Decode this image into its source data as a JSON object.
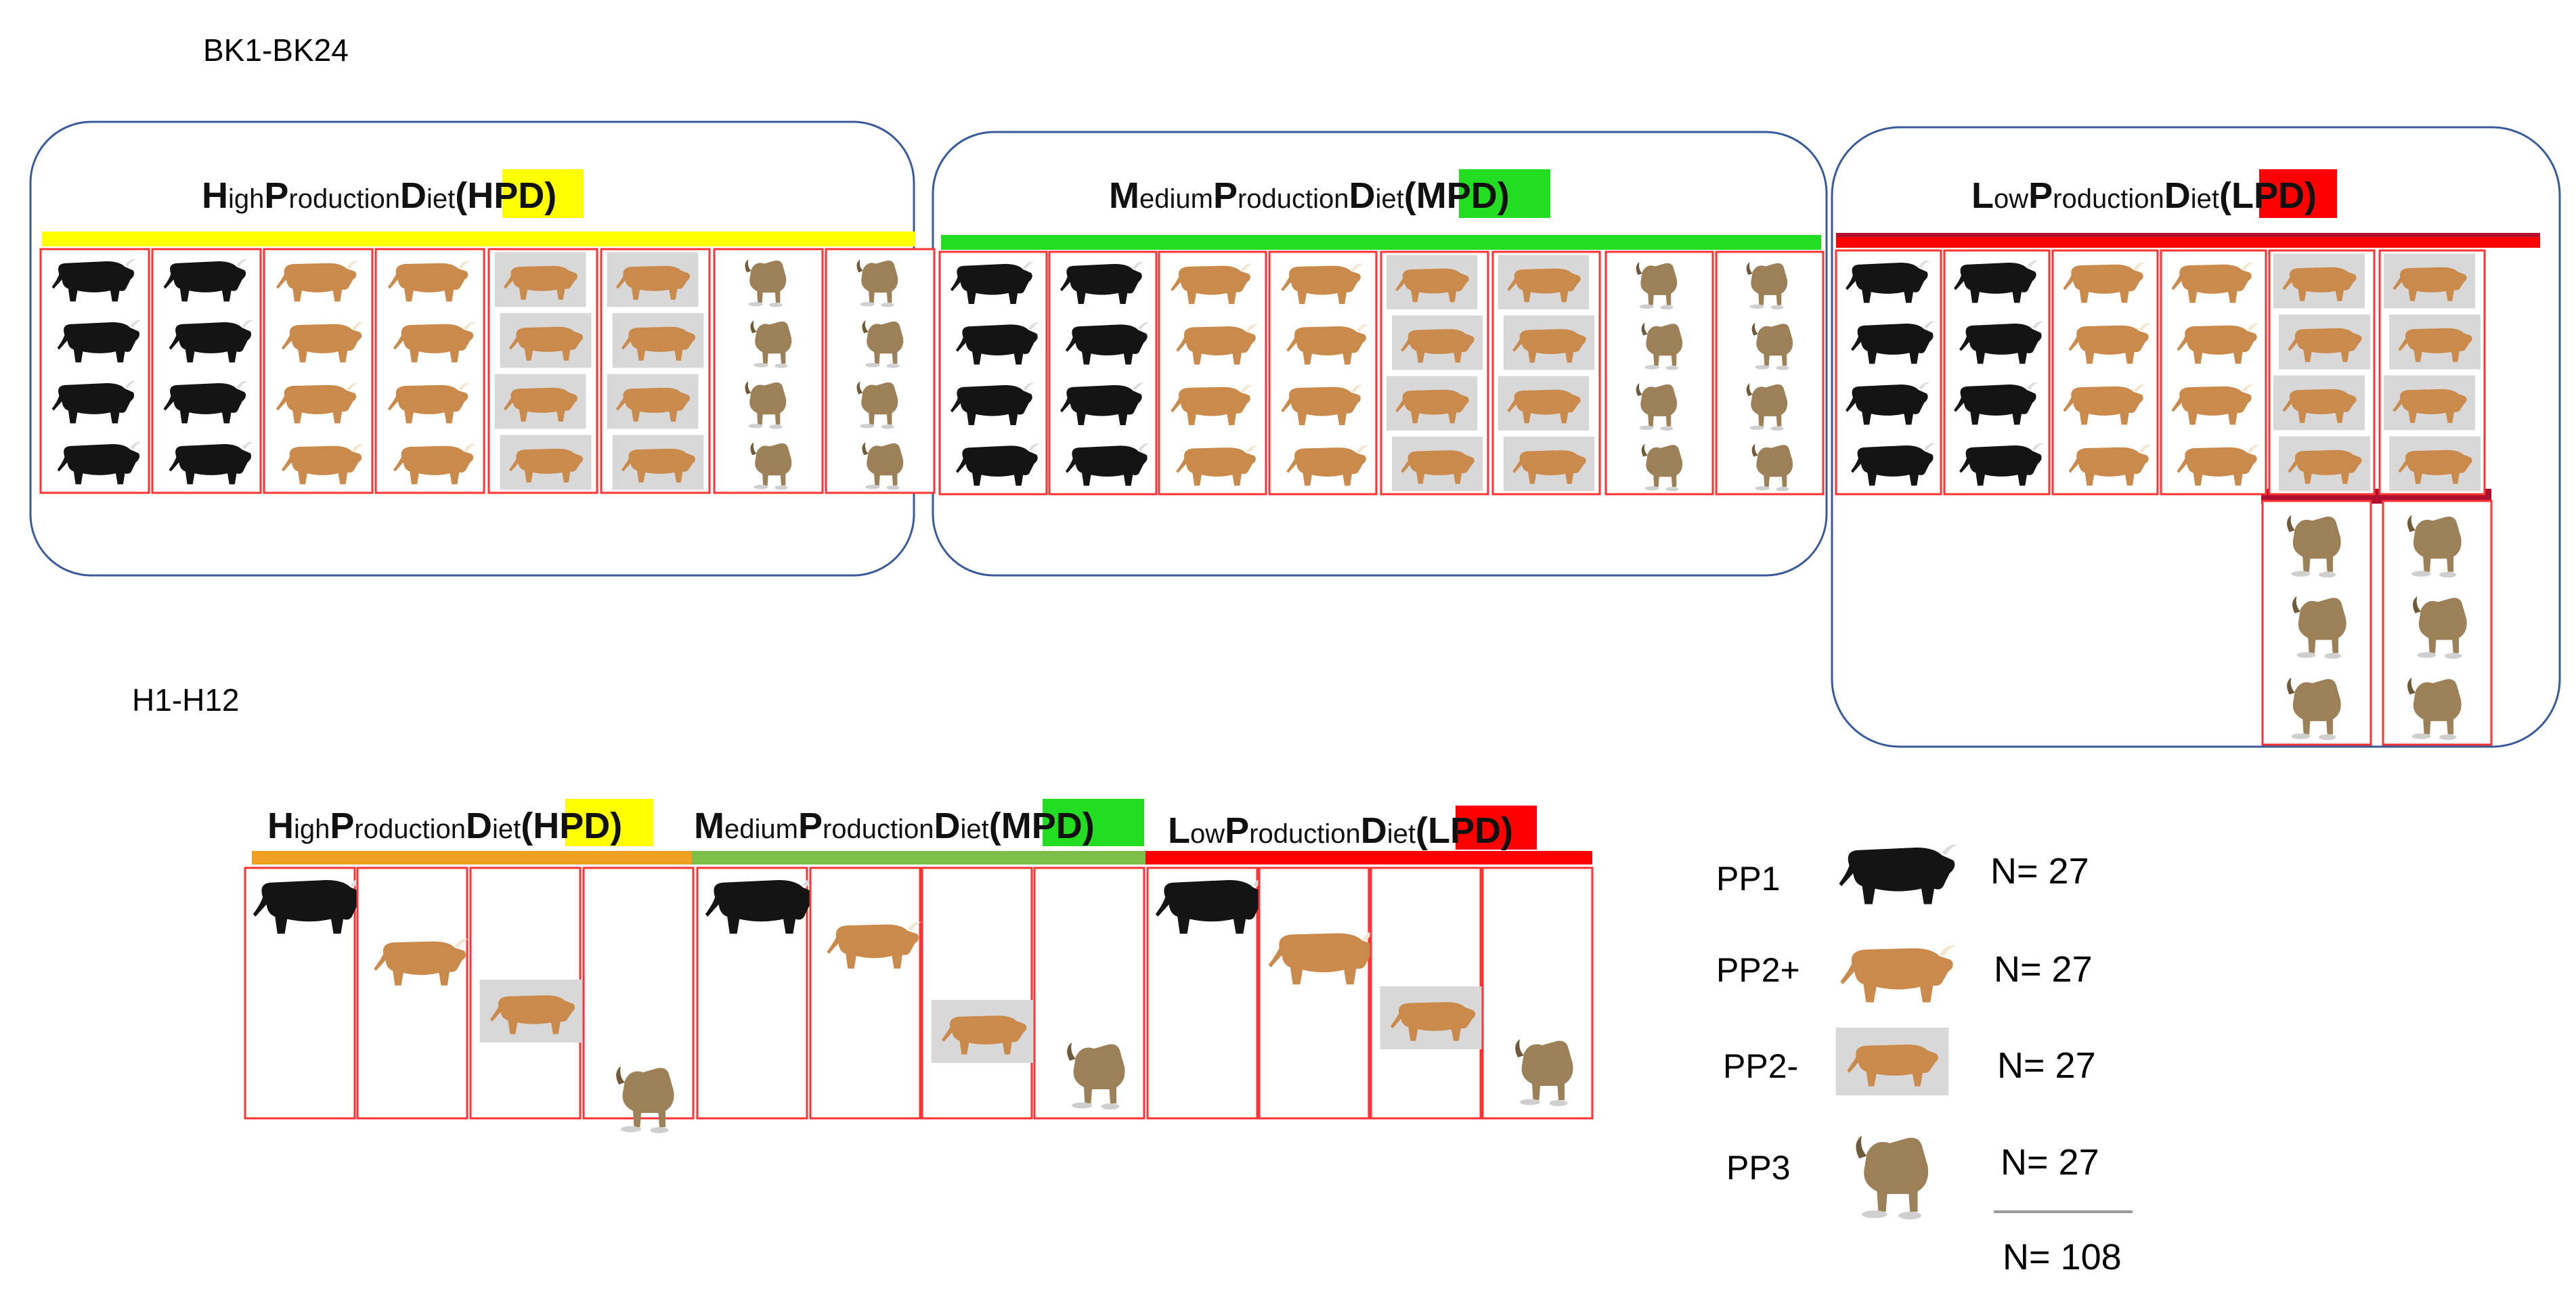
{
  "sections": {
    "bk": {
      "label": "BK1-BK24"
    },
    "h": {
      "label": "H1-H12"
    }
  },
  "diets": [
    {
      "id": "hpd",
      "w1": "H",
      "r1": "igh",
      "w2": "P",
      "r2": "roduction",
      "w3": "D",
      "r3": "iet",
      "open": "(",
      "abbr": "HPD",
      "close": ")",
      "color": "#ffff00"
    },
    {
      "id": "mpd",
      "w1": "M",
      "r1": "edium",
      "w2": "P",
      "r2": "roduction",
      "w3": "D",
      "r3": "iet",
      "open": "(",
      "abbr": "MPD",
      "close": ")",
      "color": "#22dd22"
    },
    {
      "id": "lpd",
      "w1": "L",
      "r1": "ow",
      "w2": "P",
      "r2": "roduction",
      "w3": "D",
      "r3": "iet",
      "open": "(",
      "abbr": "LPD",
      "close": ")",
      "color": "#ff0000"
    }
  ],
  "legend": {
    "items": [
      {
        "label": "PP1",
        "n": "N= 27",
        "icon": "black-bull-icon"
      },
      {
        "label": "PP2+",
        "n": "N= 27",
        "icon": "brown-bull-icon"
      },
      {
        "label": "PP2-",
        "n": "N= 27",
        "icon": "brown-bull-boxed-icon"
      },
      {
        "label": "PP3",
        "n": "N= 27",
        "icon": "brown-zebu-icon"
      }
    ],
    "total": "N= 108"
  },
  "colors": {
    "pp1": "#141414",
    "pp2plus": "#c98a4b",
    "pp2minus_bg": "#d8d8d8",
    "pp3": "#9c8058",
    "pen": "#ff3333",
    "group_border": "#3a5a9a",
    "hpd_bar_h": "#f0a020",
    "mpd_bar_h": "#7cc04a",
    "lpd_bar_dark": "#b01030"
  }
}
